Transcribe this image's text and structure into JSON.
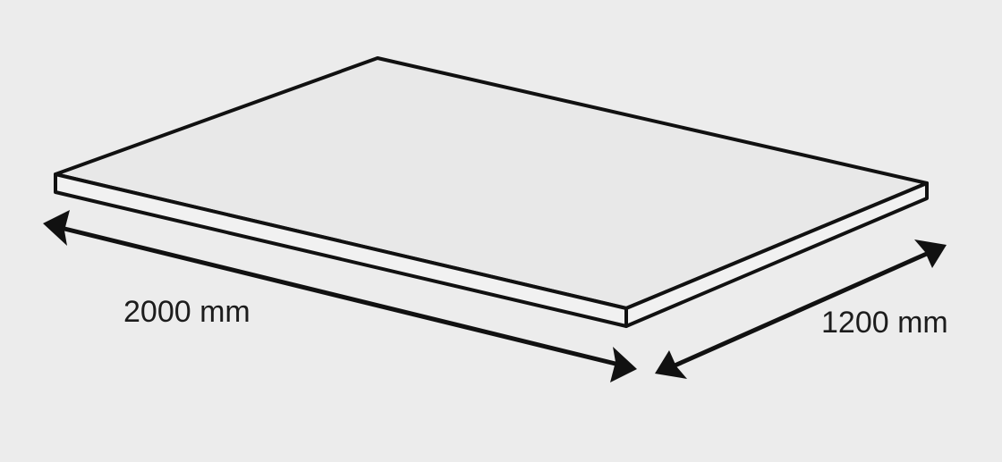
{
  "diagram": {
    "length_label": "2000 mm",
    "width_label": "1200 mm"
  },
  "colors": {
    "background": "#ececec",
    "line": "#111111",
    "top_face": "#e8e8e8",
    "edge_face": "#f1f1f1"
  }
}
